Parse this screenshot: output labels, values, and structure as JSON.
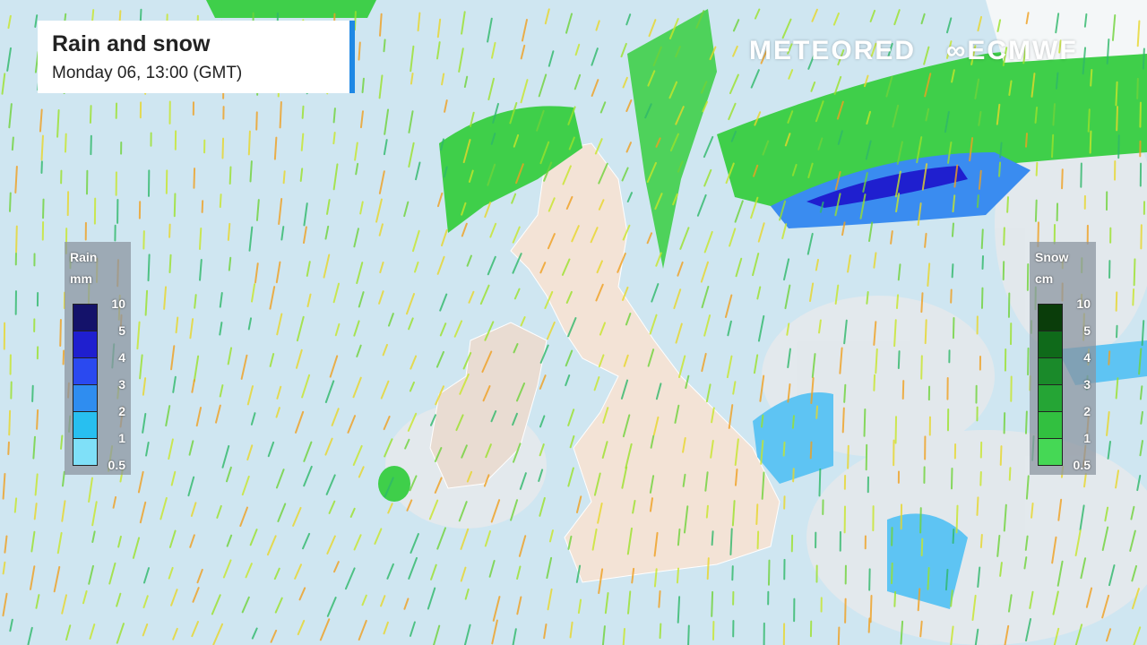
{
  "header": {
    "title": "Rain and snow",
    "subtitle": "Monday 06, 13:00 (GMT)"
  },
  "branding": {
    "meteored": "METEORED",
    "ecmwf": "ECMWF"
  },
  "rain_legend": {
    "title": "Rain",
    "unit": "mm",
    "labels": [
      "10",
      "5",
      "4",
      "3",
      "2",
      "1",
      "0.5"
    ],
    "colors": [
      "#14126a",
      "#1f1fcf",
      "#2a49f0",
      "#2f8df0",
      "#28bff0",
      "#7fe0f8"
    ]
  },
  "snow_legend": {
    "title": "Snow",
    "unit": "cm",
    "labels": [
      "10",
      "5",
      "4",
      "3",
      "2",
      "1",
      "0.5"
    ],
    "colors": [
      "#0a3d0a",
      "#0f6a1a",
      "#1a8a2a",
      "#25a535",
      "#32c040",
      "#45d855"
    ]
  },
  "colors": {
    "sea": "#cfe6f1",
    "land": "#f3e3d6",
    "snow_green": "#3fcf4a",
    "rain_blue": "#3a8cf0",
    "heavy_rain": "#1f1fcf"
  }
}
